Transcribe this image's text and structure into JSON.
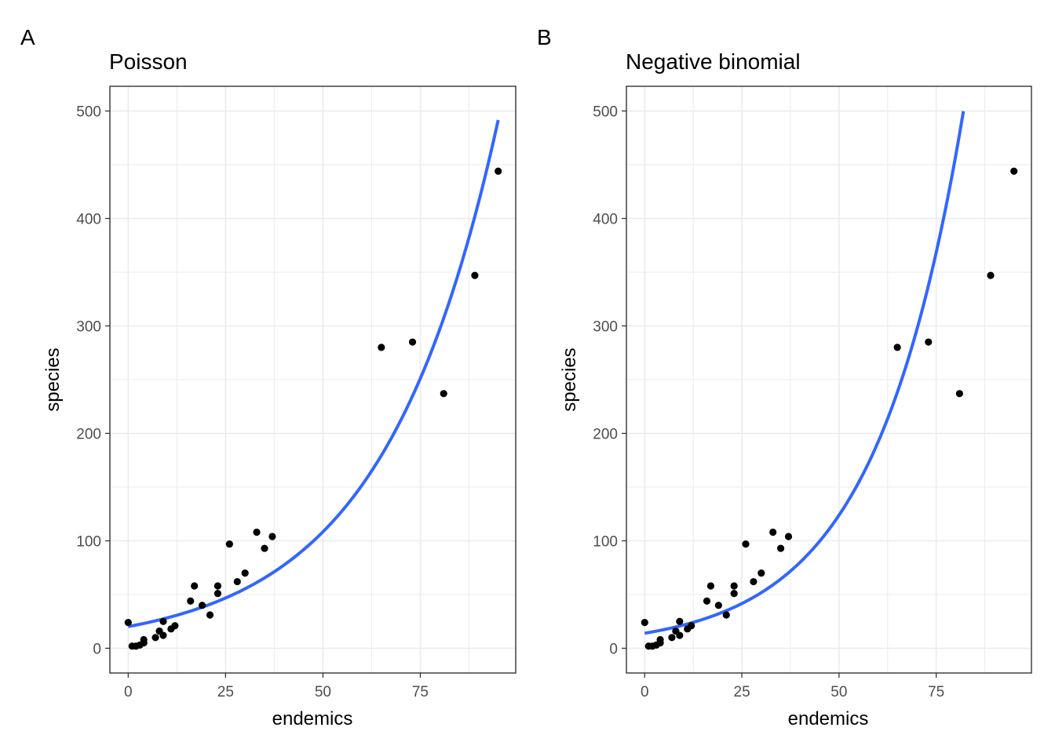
{
  "chart_data": [
    {
      "type": "scatter",
      "tag": "A",
      "title": "Poisson",
      "xlabel": "endemics",
      "ylabel": "species",
      "xlim": [
        -4.7,
        99.5
      ],
      "ylim": [
        -23,
        523
      ],
      "xticks": [
        "0",
        "25",
        "50",
        "75"
      ],
      "xtick_values": [
        0,
        25,
        50,
        75
      ],
      "yticks": [
        "0",
        "100",
        "200",
        "300",
        "400",
        "500"
      ],
      "ytick_values": [
        0,
        100,
        200,
        300,
        400,
        500
      ],
      "grid": true,
      "colors": {
        "points": "#000000",
        "fit": "#3366ff",
        "grid": "#ebebeb"
      },
      "points": [
        [
          0,
          24
        ],
        [
          1,
          2
        ],
        [
          2,
          2
        ],
        [
          3,
          3
        ],
        [
          4,
          5
        ],
        [
          4,
          8
        ],
        [
          7,
          10
        ],
        [
          8,
          16
        ],
        [
          9,
          25
        ],
        [
          9,
          12
        ],
        [
          11,
          18
        ],
        [
          12,
          21
        ],
        [
          16,
          44
        ],
        [
          17,
          58
        ],
        [
          19,
          40
        ],
        [
          21,
          31
        ],
        [
          23,
          58
        ],
        [
          23,
          51
        ],
        [
          26,
          97
        ],
        [
          28,
          62
        ],
        [
          30,
          70
        ],
        [
          33,
          108
        ],
        [
          35,
          93
        ],
        [
          37,
          104
        ],
        [
          65,
          280
        ],
        [
          73,
          285
        ],
        [
          81,
          237
        ],
        [
          89,
          347
        ],
        [
          95,
          444
        ]
      ],
      "fit": {
        "name": "",
        "a": 20.2,
        "b": 0.0336,
        "x_range": [
          0,
          95
        ]
      }
    },
    {
      "type": "scatter",
      "tag": "B",
      "title": "Negative binomial",
      "xlabel": "endemics",
      "ylabel": "species",
      "xlim": [
        -4.7,
        99.5
      ],
      "ylim": [
        -23,
        523
      ],
      "xticks": [
        "0",
        "25",
        "50",
        "75"
      ],
      "xtick_values": [
        0,
        25,
        50,
        75
      ],
      "yticks": [
        "0",
        "100",
        "200",
        "300",
        "400",
        "500"
      ],
      "ytick_values": [
        0,
        100,
        200,
        300,
        400,
        500
      ],
      "grid": true,
      "colors": {
        "points": "#000000",
        "fit": "#3366ff",
        "grid": "#ebebeb"
      },
      "points": [
        [
          0,
          24
        ],
        [
          1,
          2
        ],
        [
          2,
          2
        ],
        [
          3,
          3
        ],
        [
          4,
          5
        ],
        [
          4,
          8
        ],
        [
          7,
          10
        ],
        [
          8,
          16
        ],
        [
          9,
          25
        ],
        [
          9,
          12
        ],
        [
          11,
          18
        ],
        [
          12,
          21
        ],
        [
          16,
          44
        ],
        [
          17,
          58
        ],
        [
          19,
          40
        ],
        [
          21,
          31
        ],
        [
          23,
          58
        ],
        [
          23,
          51
        ],
        [
          26,
          97
        ],
        [
          28,
          62
        ],
        [
          30,
          70
        ],
        [
          33,
          108
        ],
        [
          35,
          93
        ],
        [
          37,
          104
        ],
        [
          65,
          280
        ],
        [
          73,
          285
        ],
        [
          81,
          237
        ],
        [
          89,
          347
        ],
        [
          95,
          444
        ]
      ],
      "fit": {
        "name": "",
        "a": 14.0,
        "b": 0.0436,
        "x_range": [
          0,
          82
        ]
      }
    }
  ]
}
